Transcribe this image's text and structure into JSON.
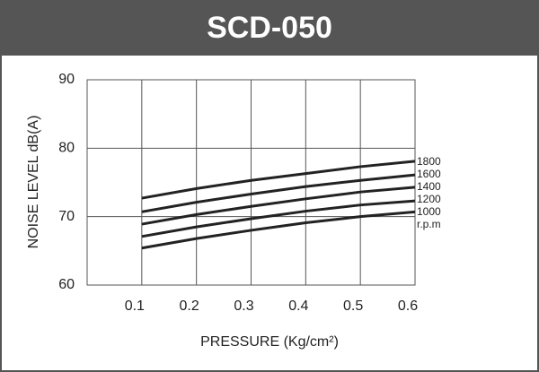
{
  "chart_data": {
    "type": "line",
    "title": "SCD-050",
    "x_label": "PRESSURE  (Kg/cm²)",
    "y_label": "NOISE LEVEL dB(A)",
    "x": [
      0.1,
      0.2,
      0.3,
      0.4,
      0.5,
      0.6
    ],
    "series": [
      {
        "name": "1800",
        "color": "#222222",
        "values": [
          72.7,
          74.1,
          75.3,
          76.3,
          77.3,
          78.1
        ]
      },
      {
        "name": "1600",
        "color": "#222222",
        "values": [
          70.7,
          72.1,
          73.3,
          74.4,
          75.3,
          76.1
        ]
      },
      {
        "name": "1400",
        "color": "#222222",
        "values": [
          68.9,
          70.3,
          71.5,
          72.6,
          73.6,
          74.3
        ]
      },
      {
        "name": "1200",
        "color": "#222222",
        "values": [
          67.1,
          68.5,
          69.7,
          70.8,
          71.7,
          72.3
        ]
      },
      {
        "name": "1000",
        "color": "#222222",
        "values": [
          65.4,
          66.8,
          68.0,
          69.1,
          70.0,
          70.7
        ]
      }
    ],
    "series_unit": "r.p.m",
    "xlim": [
      0,
      0.6
    ],
    "xticks": [
      0.1,
      0.2,
      0.3,
      0.4,
      0.5,
      0.6
    ],
    "ylim": [
      60,
      90
    ],
    "yticks": [
      60,
      70,
      80,
      90
    ],
    "grid": true
  }
}
